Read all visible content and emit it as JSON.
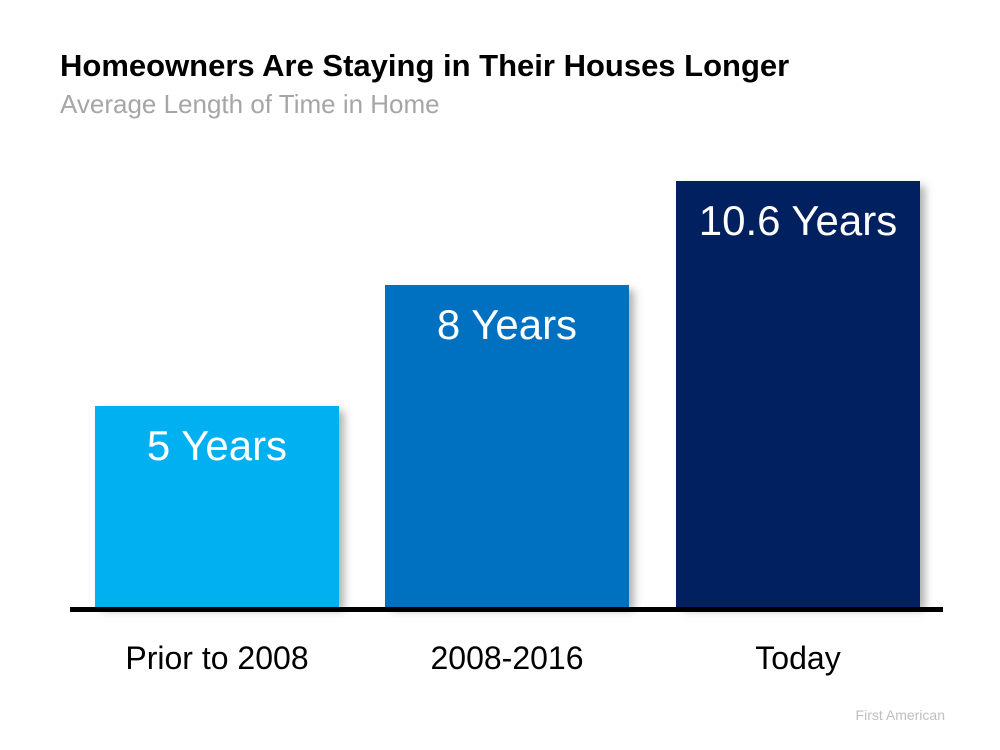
{
  "chart_data": {
    "type": "bar",
    "title": "Homeowners Are Staying in Their Houses Longer",
    "subtitle": "Average Length of Time in Home",
    "categories": [
      "Prior to 2008",
      "2008-2016",
      "Today"
    ],
    "values": [
      5,
      8,
      10.6
    ],
    "bar_labels": [
      "5 Years",
      "8 Years",
      "10.6 Years"
    ],
    "bar_colors": [
      "#00B0F0",
      "#0070C0",
      "#002060"
    ],
    "value_label_color": "#FFFFFF",
    "axis_color": "#000000",
    "title_color": "#000000",
    "subtitle_color": "#A6A6A6",
    "ylim": [
      0,
      10.6
    ],
    "grid": false,
    "legend": false,
    "source": "First American",
    "source_color": "#BFBFBF"
  }
}
